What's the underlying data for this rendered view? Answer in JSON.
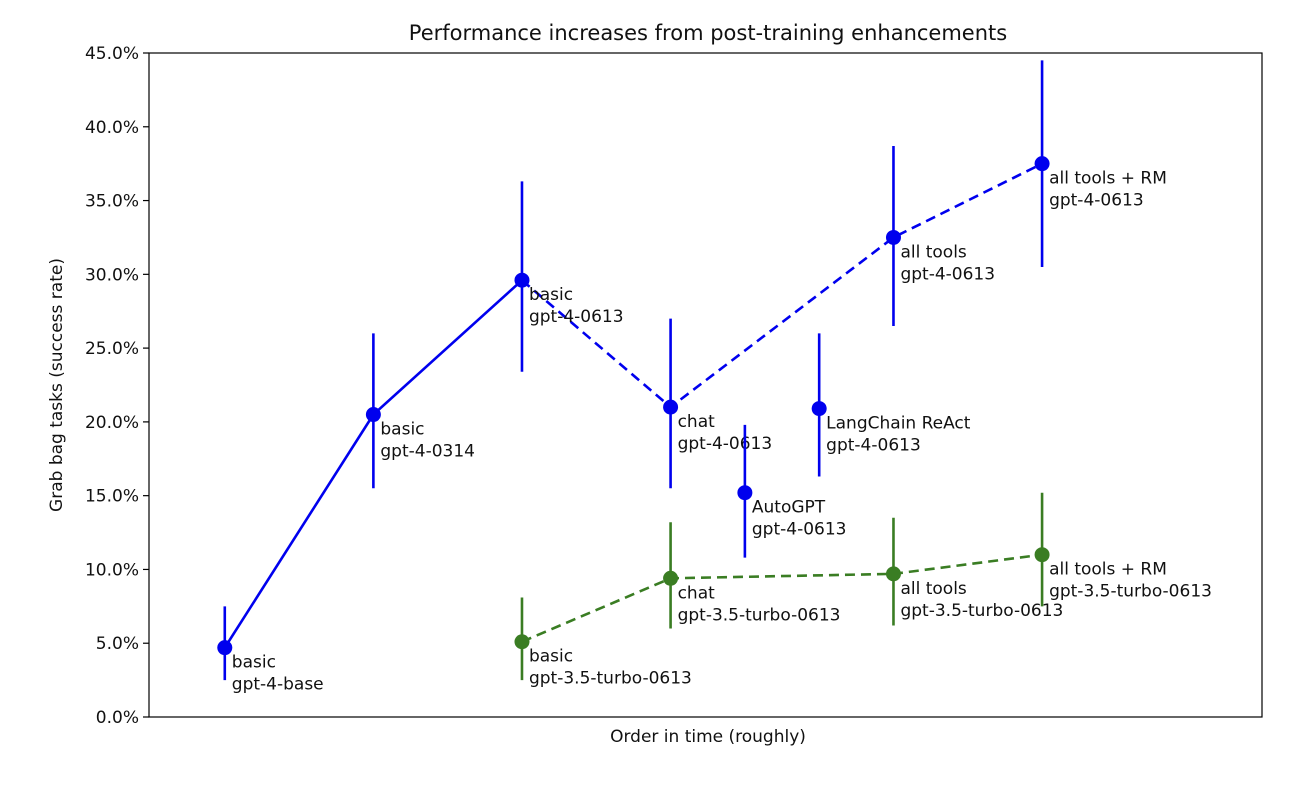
{
  "chart_data": {
    "type": "line",
    "title": "Performance increases from post-training enhancements",
    "xlabel": "Order in time (roughly)",
    "ylabel": "Grab bag tasks (success rate)",
    "ylim": [
      0,
      45
    ],
    "xlim": [
      -0.51,
      6.98
    ],
    "yticks": [
      0,
      5,
      10,
      15,
      20,
      25,
      30,
      35,
      40,
      45
    ],
    "ytick_labels": [
      "0.0%",
      "5.0%",
      "10.0%",
      "15.0%",
      "20.0%",
      "25.0%",
      "30.0%",
      "35.0%",
      "40.0%",
      "45.0%"
    ],
    "grid": false,
    "series": [
      {
        "name": "gpt-4",
        "color": "#0000ee",
        "points": [
          {
            "x": 0,
            "y": 4.7,
            "err_low": 2.5,
            "err_high": 7.5,
            "label": [
              "basic",
              "gpt-4-base"
            ]
          },
          {
            "x": 1,
            "y": 20.5,
            "err_low": 15.5,
            "err_high": 26.0,
            "label": [
              "basic",
              "gpt-4-0314"
            ]
          },
          {
            "x": 2,
            "y": 29.6,
            "err_low": 23.4,
            "err_high": 36.3,
            "label": [
              "basic",
              "gpt-4-0613"
            ]
          },
          {
            "x": 3,
            "y": 21.0,
            "err_low": 15.5,
            "err_high": 27.0,
            "label": [
              "chat",
              "gpt-4-0613"
            ]
          },
          {
            "x": 3.5,
            "y": 15.2,
            "err_low": 10.8,
            "err_high": 19.8,
            "label": [
              "AutoGPT",
              "gpt-4-0613"
            ]
          },
          {
            "x": 4,
            "y": 20.9,
            "err_low": 16.3,
            "err_high": 26.0,
            "label": [
              "LangChain ReAct",
              "gpt-4-0613"
            ]
          },
          {
            "x": 4.5,
            "y": 32.5,
            "err_low": 26.5,
            "err_high": 38.7,
            "label": [
              "all tools",
              "gpt-4-0613"
            ]
          },
          {
            "x": 5.5,
            "y": 37.5,
            "err_low": 30.5,
            "err_high": 44.5,
            "label": [
              "all tools + RM",
              "gpt-4-0613"
            ]
          }
        ],
        "lines": [
          {
            "style": "solid",
            "indices": [
              0,
              1,
              2
            ]
          },
          {
            "style": "dashed",
            "indices": [
              2,
              3,
              6,
              7
            ]
          }
        ]
      },
      {
        "name": "gpt-3.5-turbo",
        "color": "#3a7d23",
        "points": [
          {
            "x": 2,
            "y": 5.1,
            "err_low": 2.5,
            "err_high": 8.1,
            "label": [
              "basic",
              "gpt-3.5-turbo-0613"
            ]
          },
          {
            "x": 3,
            "y": 9.4,
            "err_low": 6.0,
            "err_high": 13.2,
            "label": [
              "chat",
              "gpt-3.5-turbo-0613"
            ]
          },
          {
            "x": 4.5,
            "y": 9.7,
            "err_low": 6.2,
            "err_high": 13.5,
            "label": [
              "all tools",
              "gpt-3.5-turbo-0613"
            ]
          },
          {
            "x": 5.5,
            "y": 11.0,
            "err_low": 7.5,
            "err_high": 15.2,
            "label": [
              "all tools + RM",
              "gpt-3.5-turbo-0613"
            ]
          }
        ],
        "lines": [
          {
            "style": "dashed",
            "indices": [
              0,
              1,
              2,
              3
            ]
          }
        ]
      }
    ]
  }
}
